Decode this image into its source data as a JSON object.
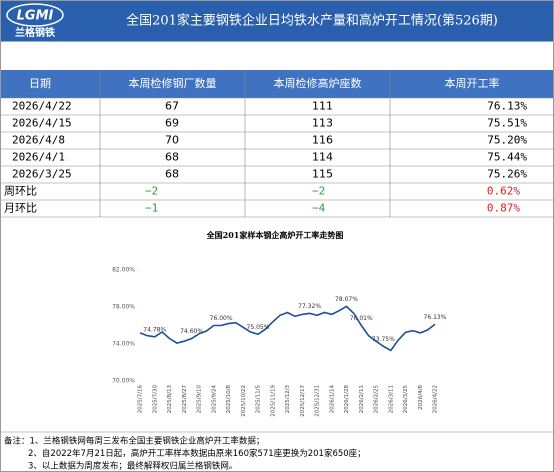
{
  "header": {
    "logo_text": "LGMI",
    "logo_name": "兰格钢铁",
    "title": "全国201家主要钢铁企业日均铁水产量和高炉开工情况(第526期)"
  },
  "table": {
    "columns": [
      "日期",
      "本周检修钢厂数量",
      "本周检修高炉座数",
      "本周开工率"
    ],
    "rows": [
      [
        "2026/4/22",
        "67",
        "111",
        "76.13%"
      ],
      [
        "2026/4/15",
        "69",
        "113",
        "75.51%"
      ],
      [
        "2026/4/8",
        "70",
        "116",
        "75.20%"
      ],
      [
        "2026/4/1",
        "68",
        "114",
        "75.44%"
      ],
      [
        "2026/3/25",
        "68",
        "115",
        "75.26%"
      ]
    ],
    "compare_rows": [
      {
        "label": "周环比",
        "values": [
          "−2",
          "−2",
          "0.62%"
        ],
        "colors": [
          "#2e9e3e",
          "#2e9e3e",
          "#e02020"
        ]
      },
      {
        "label": "月环比",
        "values": [
          "−1",
          "−4",
          "0.87%"
        ],
        "colors": [
          "#2e9e3e",
          "#2e9e3e",
          "#e02020"
        ]
      }
    ]
  },
  "chart_data": {
    "type": "line",
    "title": "全国201家样本钢企高炉开工率走势图",
    "color": "#1f4e9a",
    "categories": [
      "2025/7/16",
      null,
      "2025/7/30",
      null,
      "2025/8/13",
      null,
      "2025/8/27",
      null,
      "2025/9/10",
      null,
      "2025/9/24",
      null,
      "2025/10/8",
      null,
      "2025/10/22",
      null,
      "2025/11/5",
      null,
      "2025/11/19",
      null,
      "2025/12/3",
      null,
      "2025/12/17",
      null,
      "2025/12/31",
      null,
      "2026/1/14",
      null,
      "2026/1/28",
      null,
      "2026/2/11",
      null,
      "2026/2/25",
      null,
      "2026/3/11",
      null,
      "2026/3/25",
      null,
      "2026/4/8",
      null,
      "2026/4/22"
    ],
    "values": [
      75.2,
      74.9,
      74.78,
      75.3,
      74.6,
      74.1,
      74.3,
      74.6,
      75.1,
      75.4,
      76.0,
      76.0,
      76.2,
      76.3,
      75.8,
      75.3,
      75.05,
      75.6,
      76.4,
      77.1,
      77.4,
      77.0,
      77.2,
      77.32,
      77.1,
      77.4,
      77.2,
      77.6,
      78.07,
      77.3,
      76.01,
      74.9,
      74.3,
      73.75,
      73.3,
      74.4,
      75.26,
      75.44,
      75.2,
      75.51,
      76.13
    ],
    "value_labels": [
      null,
      null,
      "74.78%",
      null,
      null,
      null,
      null,
      "74.60%",
      null,
      null,
      null,
      "76.00%",
      null,
      null,
      null,
      null,
      "75.05%",
      null,
      null,
      null,
      null,
      null,
      null,
      "77.32%",
      null,
      null,
      null,
      null,
      "78.07%",
      null,
      "76.01%",
      null,
      null,
      "73.75%",
      null,
      null,
      null,
      null,
      null,
      null,
      "76.13%"
    ],
    "ylim": [
      70,
      82
    ],
    "yticks": [
      {
        "value": 70,
        "label": "70.00%"
      },
      {
        "value": 74,
        "label": "74.00%"
      },
      {
        "value": 78,
        "label": "78.00%"
      },
      {
        "value": 82,
        "label": "82.00%"
      }
    ]
  },
  "notes": [
    "备注：1、兰格钢铁网每周三发布全国主要钢铁企业高炉开工率数据；",
    "2、自2022年7月21日起，高炉开工率样本数据由原来160家571座更换为201家650座；",
    "3、以上数据为周度发布；最终解释权归属兰格钢铁网。"
  ]
}
